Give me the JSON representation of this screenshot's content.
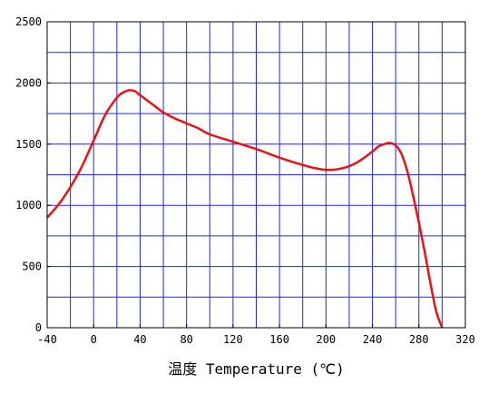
{
  "chart_data": {
    "type": "line",
    "title": "",
    "xlabel": "温度 Temperature (℃)",
    "ylabel": "",
    "xlim": [
      -40,
      320
    ],
    "ylim": [
      0,
      2500
    ],
    "x_ticks": [
      -40,
      0,
      40,
      80,
      120,
      160,
      200,
      240,
      280,
      320
    ],
    "x_minor_grid": [
      -20,
      20,
      60,
      100,
      140,
      180,
      220,
      260,
      300
    ],
    "y_ticks": [
      0,
      500,
      1000,
      1500,
      2000,
      2500
    ],
    "y_minor_grid": [
      250,
      750,
      1250,
      1750,
      2250
    ],
    "grid": true,
    "colors": {
      "grid": "#1f2bd6",
      "series": "#ee1111",
      "frame": "#000000"
    },
    "series": [
      {
        "x": [
          -40,
          -30,
          -20,
          -10,
          0,
          10,
          20,
          25,
          30,
          35,
          40,
          50,
          60,
          70,
          80,
          90,
          100,
          120,
          140,
          160,
          180,
          190,
          200,
          210,
          220,
          230,
          240,
          245,
          250,
          255,
          260,
          265,
          270,
          275,
          280,
          285,
          290,
          295,
          300
        ],
        "values": [
          900,
          1010,
          1150,
          1320,
          1530,
          1740,
          1880,
          1920,
          1940,
          1935,
          1900,
          1830,
          1760,
          1710,
          1670,
          1630,
          1580,
          1520,
          1460,
          1390,
          1330,
          1305,
          1290,
          1295,
          1320,
          1370,
          1440,
          1480,
          1500,
          1510,
          1490,
          1420,
          1280,
          1080,
          860,
          620,
          360,
          130,
          0
        ]
      }
    ]
  }
}
